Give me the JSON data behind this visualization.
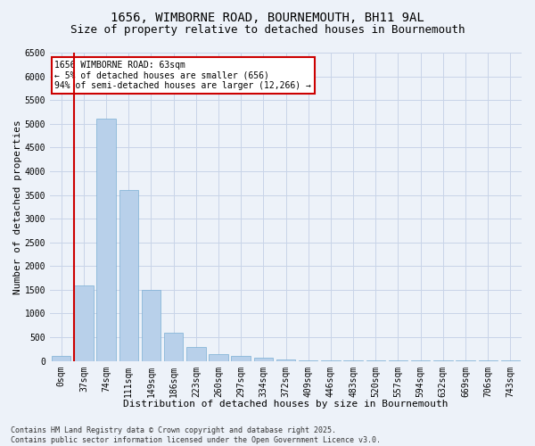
{
  "title_line1": "1656, WIMBORNE ROAD, BOURNEMOUTH, BH11 9AL",
  "title_line2": "Size of property relative to detached houses in Bournemouth",
  "xlabel": "Distribution of detached houses by size in Bournemouth",
  "ylabel": "Number of detached properties",
  "bar_color": "#b8d0ea",
  "bar_edge_color": "#7aafd4",
  "grid_color": "#c8d4e8",
  "bg_color": "#edf2f9",
  "annotation_text": "1656 WIMBORNE ROAD: 63sqm\n← 5% of detached houses are smaller (656)\n94% of semi-detached houses are larger (12,266) →",
  "vline_color": "#cc0000",
  "annotation_box_bg": "#ffffff",
  "annotation_box_edge": "#cc0000",
  "categories": [
    "0sqm",
    "37sqm",
    "74sqm",
    "111sqm",
    "149sqm",
    "186sqm",
    "223sqm",
    "260sqm",
    "297sqm",
    "334sqm",
    "372sqm",
    "409sqm",
    "446sqm",
    "483sqm",
    "520sqm",
    "557sqm",
    "594sqm",
    "632sqm",
    "669sqm",
    "706sqm",
    "743sqm"
  ],
  "values": [
    100,
    1600,
    5100,
    3600,
    1500,
    600,
    300,
    150,
    100,
    75,
    30,
    5,
    5,
    5,
    5,
    5,
    5,
    5,
    5,
    5,
    5
  ],
  "ylim": [
    0,
    6500
  ],
  "yticks": [
    0,
    500,
    1000,
    1500,
    2000,
    2500,
    3000,
    3500,
    4000,
    4500,
    5000,
    5500,
    6000,
    6500
  ],
  "footnote_line1": "Contains HM Land Registry data © Crown copyright and database right 2025.",
  "footnote_line2": "Contains public sector information licensed under the Open Government Licence v3.0.",
  "title_fontsize": 10,
  "subtitle_fontsize": 9,
  "tick_fontsize": 7,
  "label_fontsize": 8,
  "annot_fontsize": 7,
  "footnote_fontsize": 6
}
